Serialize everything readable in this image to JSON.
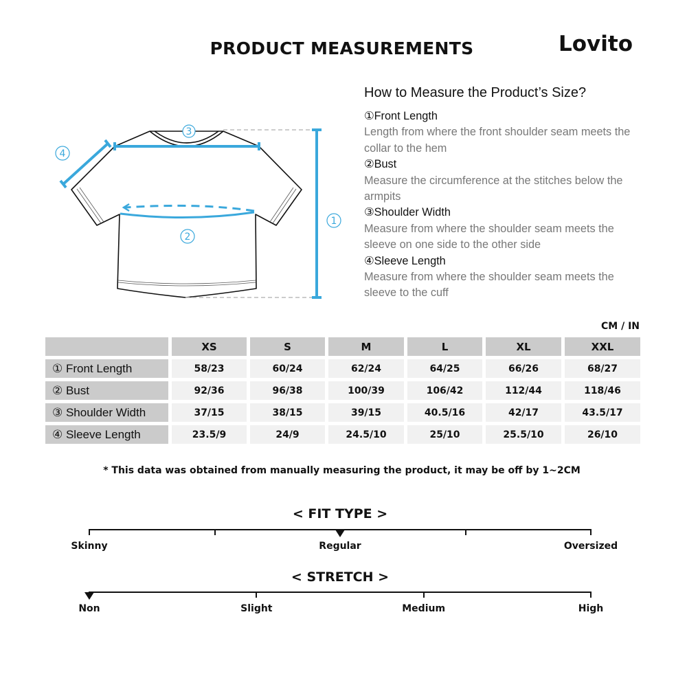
{
  "title": "PRODUCT MEASUREMENTS",
  "logo": "Lovito",
  "accent_color": "#3aa8dc",
  "diagram": {
    "labels": [
      "①",
      "②",
      "③",
      "④"
    ]
  },
  "guide": {
    "heading": "How to Measure the Product’s Size?",
    "items": [
      {
        "title": "①Front Length",
        "desc": "Length from where the front shoulder seam meets the collar to the hem"
      },
      {
        "title": "②Bust",
        "desc": "Measure the circumference at the stitches below the armpits"
      },
      {
        "title": "③Shoulder Width",
        "desc": "Measure from where the shoulder seam meets the sleeve on one side to the other side"
      },
      {
        "title": "④Sleeve Length",
        "desc": "Measure from where the shoulder seam meets the sleeve to the cuff"
      }
    ]
  },
  "table": {
    "unit": "CM / IN",
    "sizes": [
      "XS",
      "S",
      "M",
      "L",
      "XL",
      "XXL"
    ],
    "rows": [
      {
        "label": "① Front Length",
        "values": [
          "58/23",
          "60/24",
          "62/24",
          "64/25",
          "66/26",
          "68/27"
        ]
      },
      {
        "label": "② Bust",
        "values": [
          "92/36",
          "96/38",
          "100/39",
          "106/42",
          "112/44",
          "118/46"
        ]
      },
      {
        "label": "③ Shoulder Width",
        "values": [
          "37/15",
          "38/15",
          "39/15",
          "40.5/16",
          "42/17",
          "43.5/17"
        ]
      },
      {
        "label": "④ Sleeve Length",
        "values": [
          "23.5/9",
          "24/9",
          "24.5/10",
          "25/10",
          "25.5/10",
          "26/10"
        ]
      }
    ]
  },
  "note": "* This data was obtained from manually measuring the product, it may be off by 1~2CM",
  "fit": {
    "title": "< FIT TYPE >",
    "options": [
      "Skinny",
      "",
      "Regular",
      "",
      "Oversized"
    ],
    "selected": "Regular"
  },
  "stretch": {
    "title": "< STRETCH >",
    "options": [
      "Non",
      "Slight",
      "Medium",
      "High"
    ],
    "selected": "Non"
  }
}
